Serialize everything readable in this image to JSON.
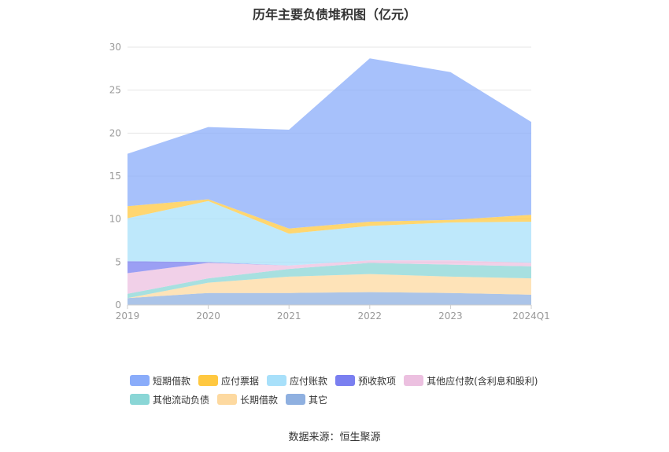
{
  "chart_data": {
    "type": "area",
    "title": "历年主要负债堆积图（亿元）",
    "categories": [
      "2019",
      "2020",
      "2021",
      "2022",
      "2023",
      "2024Q1"
    ],
    "ylim": [
      0,
      30
    ],
    "yticks": [
      "0",
      "5",
      "10",
      "15",
      "20",
      "25",
      "30"
    ],
    "grid": true,
    "legend_position": "bottom",
    "series": [
      {
        "name": "其它",
        "color": "#8fb0e0",
        "values": [
          0.8,
          1.4,
          1.4,
          1.5,
          1.4,
          1.2
        ]
      },
      {
        "name": "长期借款",
        "color": "#fdd9a0",
        "values": [
          0.0,
          1.2,
          1.9,
          2.1,
          1.9,
          1.9
        ]
      },
      {
        "name": "其他流动负债",
        "color": "#8ad6d6",
        "values": [
          0.5,
          0.5,
          0.9,
          1.3,
          1.4,
          1.4
        ]
      },
      {
        "name": "其他应付款(含利息和股利)",
        "color": "#ecc0e0",
        "values": [
          2.4,
          1.8,
          0.4,
          0.3,
          0.5,
          0.4
        ]
      },
      {
        "name": "预收款项",
        "color": "#7a7ff0",
        "values": [
          1.4,
          0.1,
          0.0,
          0.0,
          0.0,
          0.0
        ]
      },
      {
        "name": "应付账款",
        "color": "#a8e0fa",
        "values": [
          5.0,
          7.1,
          3.7,
          4.0,
          4.4,
          4.8
        ]
      },
      {
        "name": "应付票据",
        "color": "#ffc840",
        "values": [
          1.4,
          0.2,
          0.6,
          0.5,
          0.3,
          0.8
        ]
      },
      {
        "name": "短期借款",
        "color": "#8aacfa",
        "values": [
          6.1,
          8.4,
          11.5,
          19.0,
          17.2,
          10.8
        ]
      }
    ],
    "source": "数据来源：恒生聚源"
  },
  "legend_rows": [
    [
      {
        "name": "短期借款",
        "color": "#8aacfa"
      },
      {
        "name": "应付票据",
        "color": "#ffc840"
      },
      {
        "name": "应付账款",
        "color": "#a8e0fa"
      },
      {
        "name": "预收款项",
        "color": "#7a7ff0"
      },
      {
        "name": "其他应付款(含利息和股利)",
        "color": "#ecc0e0"
      }
    ],
    [
      {
        "name": "其他流动负债",
        "color": "#8ad6d6"
      },
      {
        "name": "长期借款",
        "color": "#fdd9a0"
      },
      {
        "name": "其它",
        "color": "#8fb0e0"
      }
    ]
  ]
}
